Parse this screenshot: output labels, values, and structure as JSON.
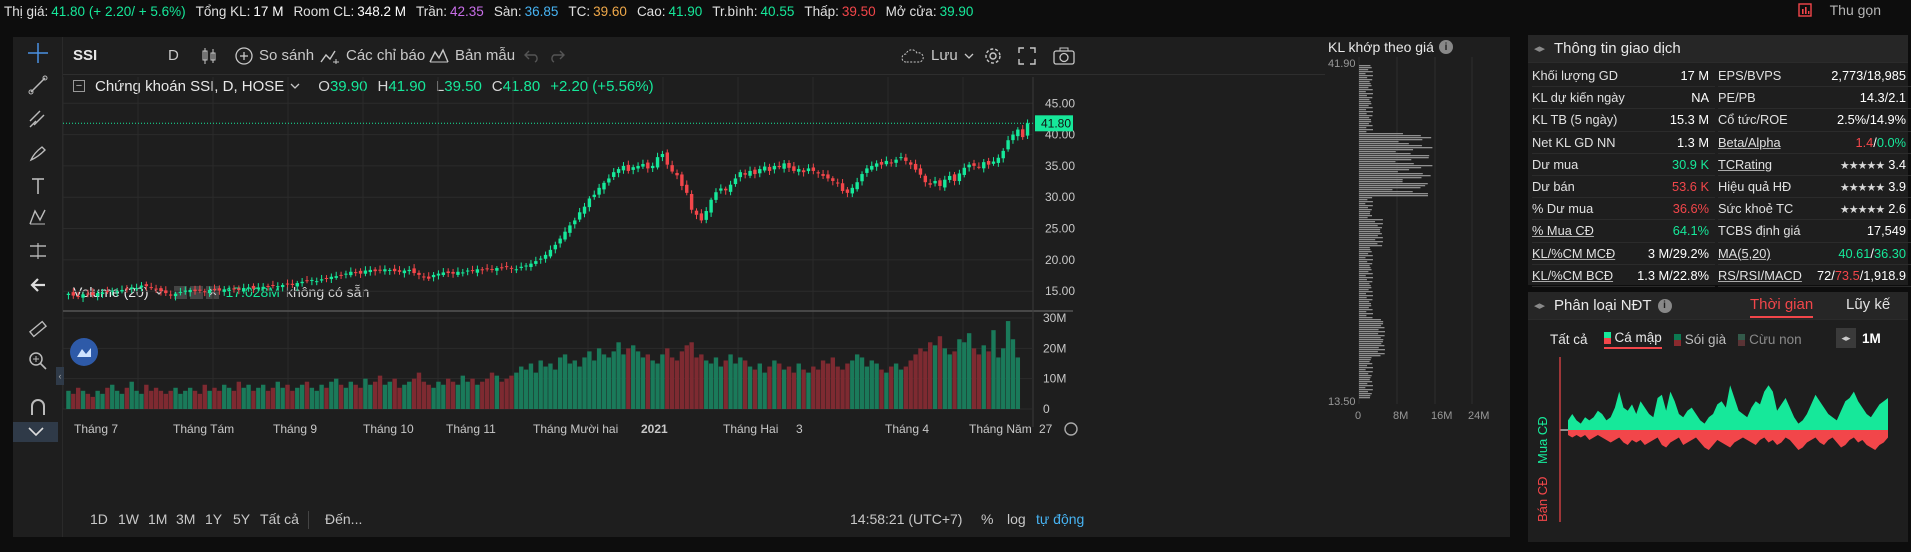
{
  "topbar": {
    "items": [
      {
        "label": "Thị giá:",
        "value": "41.80 (+ 2.20/ + 5.6%)",
        "color": "green"
      },
      {
        "label": "Tổng KL:",
        "value": "17 M",
        "color": "white"
      },
      {
        "label": "Room CL:",
        "value": "348.2 M",
        "color": "white"
      },
      {
        "label": "Trần:",
        "value": "42.35",
        "color": "purple"
      },
      {
        "label": "Sàn:",
        "value": "36.85",
        "color": "cyan"
      },
      {
        "label": "TC:",
        "value": "39.60",
        "color": "orange"
      },
      {
        "label": "Cao:",
        "value": "41.90",
        "color": "green"
      },
      {
        "label": "Tr.bình:",
        "value": "40.55",
        "color": "green"
      },
      {
        "label": "Thấp:",
        "value": "39.50",
        "color": "red"
      },
      {
        "label": "Mở cửa:",
        "value": "39.90",
        "color": "green"
      }
    ],
    "collapse_label": "Thu gọn",
    "collapse_icon": "collapse-icon"
  },
  "toolbar": {
    "symbol": "SSI",
    "interval": "D",
    "compare": "So sánh",
    "indicators": "Các chỉ báo",
    "templates": "Bản mẫu",
    "save": "Lưu"
  },
  "legend": {
    "title": "Chứng khoán SSI, D, HOSE",
    "o_label": "O",
    "o": "39.90",
    "h_label": "H",
    "h": "41.90",
    "l_label": "L",
    "l": "39.50",
    "c_label": "C",
    "c": "41.80",
    "change": "+2.20 (+5.56%)"
  },
  "volume_legend": {
    "title": "Volume (20)",
    "value": "17.028M",
    "status": "không có sẵn"
  },
  "price_axis": [
    "45.00",
    "40.00",
    "35.00",
    "30.00",
    "25.00",
    "20.00",
    "15.00"
  ],
  "last_price_tag": "41.80",
  "volume_axis": [
    "30M",
    "20M",
    "10M",
    "0"
  ],
  "time_axis": [
    "Tháng 7",
    "Tháng Tám",
    "Tháng 9",
    "Tháng 10",
    "Tháng 11",
    "Tháng Mười hai",
    "2021",
    "Tháng Hai",
    "3",
    "Tháng 4",
    "Tháng Năm",
    "27"
  ],
  "bottom_bar": {
    "ranges": [
      "1D",
      "1W",
      "1M",
      "3M",
      "1Y",
      "5Y",
      "Tất cả"
    ],
    "goto": "Đến...",
    "time": "14:58:21 (UTC+7)",
    "percent": "%",
    "log": "log",
    "auto": "tự động"
  },
  "chart_data": {
    "type": "candlestick",
    "ylim": [
      12,
      46
    ],
    "series_close": [
      14.6,
      14.3,
      14.2,
      14.5,
      14.6,
      14.4,
      14.7,
      14.8,
      14.9,
      15.1,
      15.0,
      15.2,
      15.4,
      15.6,
      15.5,
      15.9,
      15.8,
      15.6,
      15.3,
      15.0,
      14.7,
      14.3,
      14.6,
      14.9,
      15.1,
      15.2,
      15.0,
      15.1,
      14.9,
      15.2,
      15.3,
      15.1,
      15.3,
      15.2,
      15.4,
      15.2,
      15.5,
      15.6,
      15.4,
      15.6,
      15.7,
      15.8,
      15.9,
      15.8,
      16.0,
      16.1,
      16.0,
      16.3,
      16.5,
      16.7,
      16.8,
      16.6,
      16.9,
      17.1,
      17.3,
      17.4,
      17.6,
      17.8,
      18.1,
      18.0,
      17.8,
      18.3,
      18.4,
      18.2,
      18.3,
      18.5,
      18.4,
      18.2,
      18.1,
      18.3,
      18.4,
      17.9,
      17.6,
      17.3,
      17.0,
      17.6,
      17.8,
      18.0,
      17.9,
      17.8,
      18.1,
      18.0,
      18.3,
      18.2,
      18.5,
      18.4,
      18.6,
      18.5,
      18.7,
      18.8,
      18.9,
      18.6,
      18.5,
      18.9,
      19.1,
      19.4,
      19.8,
      20.2,
      20.8,
      21.6,
      22.4,
      23.4,
      24.5,
      25.5,
      26.3,
      27.6,
      28.5,
      29.8,
      30.4,
      31.5,
      32.3,
      33.0,
      34.0,
      34.5,
      35.0,
      34.2,
      34.8,
      35.0,
      35.3,
      34.6,
      35.0,
      36.4,
      36.9,
      35.2,
      34.1,
      33.5,
      31.8,
      30.7,
      28.0,
      27.2,
      26.3,
      27.8,
      29.6,
      30.8,
      31.4,
      31.1,
      32.0,
      33.0,
      34.0,
      33.6,
      34.2,
      33.7,
      34.5,
      34.9,
      34.2,
      35.0,
      34.8,
      35.4,
      34.7,
      34.2,
      34.5,
      34.0,
      34.6,
      34.2,
      33.8,
      33.4,
      33.0,
      32.6,
      32.2,
      31.0,
      30.7,
      31.5,
      32.4,
      33.7,
      34.6,
      35.0,
      35.4,
      35.2,
      35.8,
      35.5,
      36.0,
      36.4,
      35.8,
      35.2,
      34.4,
      33.6,
      32.4,
      32.0,
      32.6,
      31.8,
      32.8,
      33.4,
      32.6,
      33.8,
      34.7,
      35.2,
      35.0,
      34.8,
      35.6,
      35.2,
      35.7,
      36.3,
      37.4,
      39.1,
      40.0,
      40.8,
      39.6,
      41.8
    ],
    "series_volume": [
      6,
      5,
      7,
      6,
      5,
      4,
      6,
      5,
      7,
      8,
      6,
      5,
      7,
      9,
      6,
      5,
      8,
      6,
      7,
      6,
      5,
      6,
      7,
      5,
      6,
      7,
      6,
      5,
      8,
      6,
      7,
      6,
      8,
      7,
      6,
      9,
      7,
      8,
      6,
      7,
      8,
      6,
      7,
      9,
      7,
      8,
      6,
      7,
      8,
      9,
      7,
      6,
      8,
      7,
      9,
      10,
      8,
      7,
      9,
      8,
      7,
      10,
      8,
      9,
      11,
      8,
      9,
      10,
      7,
      8,
      9,
      10,
      12,
      9,
      8,
      7,
      9,
      8,
      10,
      9,
      8,
      11,
      9,
      10,
      8,
      9,
      10,
      12,
      11,
      9,
      10,
      11,
      12,
      14,
      13,
      15,
      12,
      16,
      14,
      15,
      13,
      17,
      18,
      15,
      16,
      14,
      17,
      19,
      16,
      20,
      18,
      17,
      19,
      22,
      18,
      20,
      21,
      19,
      17,
      18,
      16,
      15,
      18,
      20,
      17,
      16,
      19,
      21,
      22,
      17,
      18,
      16,
      15,
      17,
      14,
      16,
      18,
      15,
      17,
      16,
      14,
      13,
      15,
      12,
      14,
      16,
      15,
      13,
      14,
      12,
      15,
      13,
      12,
      14,
      13,
      16,
      15,
      17,
      14,
      13,
      15,
      16,
      18,
      17,
      14,
      16,
      15,
      13,
      12,
      14,
      15,
      13,
      14,
      16,
      18,
      20,
      19,
      22,
      21,
      24,
      20,
      18,
      19,
      23,
      22,
      25,
      20,
      18,
      21,
      19,
      26,
      17,
      20,
      29,
      23,
      17
    ],
    "vol_ylim": [
      0,
      31
    ]
  },
  "volume_profile": {
    "title": "KL khớp theo giá",
    "top_label": "41.90",
    "bottom_label": "13.50",
    "axis": [
      "0",
      "8M",
      "16M",
      "24M"
    ]
  },
  "info_panel": {
    "title": "Thông tin giao dịch",
    "left": [
      {
        "k": "Khối lượng GD",
        "v": "17 M",
        "c": "white"
      },
      {
        "k": "KL dự kiến ngày",
        "v": "NA",
        "c": "white"
      },
      {
        "k": "KL TB (5 ngày)",
        "v": "15.3 M",
        "c": "white"
      },
      {
        "k": "Net KL GD NN",
        "v": "1.3 M",
        "c": "white"
      },
      {
        "k": "Dư mua",
        "v": "30.9 K",
        "c": "green"
      },
      {
        "k": "Dư bán",
        "v": "53.6 K",
        "c": "red"
      },
      {
        "k": "% Dư mua",
        "v": "36.6%",
        "c": "red"
      },
      {
        "k": "% Mua CĐ",
        "v": "64.1%",
        "c": "green"
      },
      {
        "k": "KL/%CM MCĐ",
        "v": "3 M/29.2%",
        "c": "white"
      },
      {
        "k": "KL/%CM BCĐ",
        "v": "1.3 M/22.8%",
        "c": "white"
      }
    ],
    "right": [
      {
        "k": "EPS/BVPS",
        "v": "2,773/18,985"
      },
      {
        "k": "PE/PB",
        "v": "14.3/2.1"
      },
      {
        "k": "Cổ tức/ROE",
        "v": "2.5%/14.9%"
      },
      {
        "k": "Beta/Alpha",
        "v1": "1.4",
        "v2": "0.0%"
      },
      {
        "k": "TCRating",
        "stars": "★★★★★",
        "v": "3.4"
      },
      {
        "k": "Hiệu quả HĐ",
        "stars": "★★★★★",
        "v": "3.9"
      },
      {
        "k": "Sức khoẻ TC",
        "stars": "★★★★★",
        "v": "2.6"
      },
      {
        "k": "TCBS định giá",
        "v": "17,549"
      },
      {
        "k": "MA(5,20)",
        "v1": "40.61",
        "v2": "36.30"
      },
      {
        "k": "RS/RSI/MACD",
        "v1": "72",
        "v2": "73.5",
        "v3": "1,918.9"
      }
    ]
  },
  "investor_panel": {
    "title": "Phân loại NĐT",
    "tabs": [
      "Thời gian",
      "Lũy kế"
    ],
    "filters": [
      "Tất cả",
      "Cá mập",
      "Sói già",
      "Cừu non"
    ],
    "period": "1M",
    "buy_label": "Mua CĐ",
    "sell_label": "Bán CĐ",
    "buy_series": [
      3,
      5,
      3,
      2,
      4,
      3,
      4,
      6,
      5,
      3,
      4,
      7,
      12,
      7,
      6,
      8,
      5,
      9,
      7,
      5,
      4,
      10,
      11,
      6,
      12,
      9,
      5,
      4,
      6,
      7,
      5,
      3,
      2,
      4,
      5,
      8,
      9,
      7,
      14,
      10,
      6,
      5,
      4,
      7,
      9,
      8,
      12,
      14,
      12,
      6,
      8,
      10,
      7,
      4,
      2,
      3,
      5,
      8,
      11,
      9,
      7,
      5,
      4,
      3,
      6,
      9,
      10,
      12,
      9,
      7,
      5,
      4,
      6,
      8,
      9,
      10
    ],
    "sell_series": [
      2,
      3,
      2,
      3,
      2,
      4,
      3,
      2,
      3,
      4,
      5,
      4,
      3,
      5,
      6,
      4,
      5,
      4,
      6,
      5,
      4,
      3,
      6,
      7,
      5,
      4,
      3,
      6,
      5,
      4,
      3,
      5,
      7,
      8,
      6,
      4,
      5,
      6,
      7,
      5,
      4,
      3,
      4,
      5,
      6,
      4,
      3,
      5,
      4,
      6,
      5,
      3,
      4,
      6,
      8,
      7,
      5,
      4,
      3,
      5,
      6,
      4,
      3,
      5,
      7,
      6,
      4,
      3,
      5,
      4,
      6,
      7,
      8,
      6,
      5,
      3
    ]
  }
}
